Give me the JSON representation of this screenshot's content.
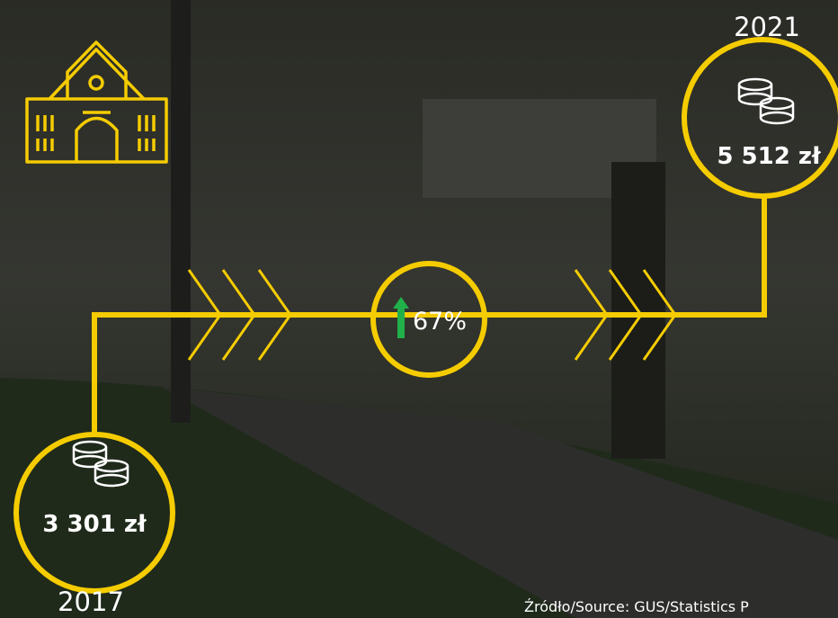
{
  "start": {
    "year": "2017",
    "amount": "3 301 zł"
  },
  "end": {
    "year": "2021",
    "amount": "5 512 zł"
  },
  "change": "67%",
  "source": "Źródło/Source: GUS/Statistics P"
}
